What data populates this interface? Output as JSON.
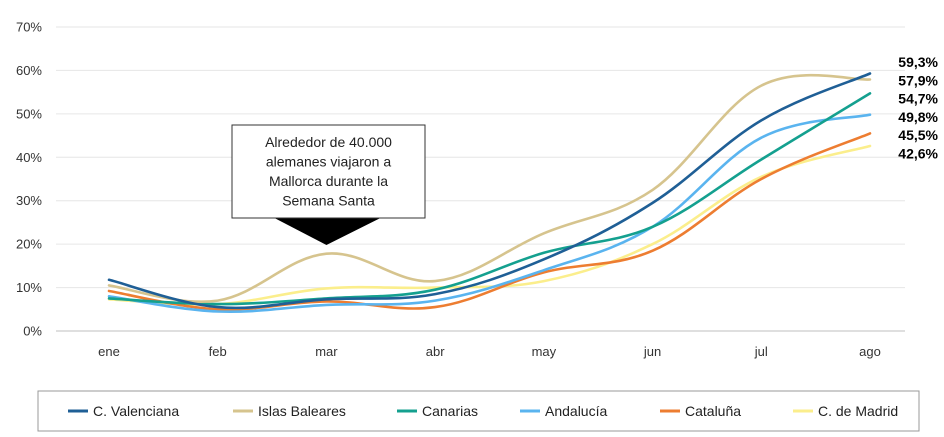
{
  "chart_data": {
    "type": "line",
    "categories": [
      "ene",
      "feb",
      "mar",
      "abr",
      "may",
      "jun",
      "jul",
      "ago"
    ],
    "y_ticks": [
      "0%",
      "10%",
      "20%",
      "30%",
      "40%",
      "50%",
      "60%",
      "70%"
    ],
    "ylim": [
      0,
      70
    ],
    "grid": true,
    "legend_position": "bottom",
    "series": [
      {
        "name": "C. Valenciana",
        "color": "#1f5f96",
        "values": [
          11.8,
          5.5,
          7.3,
          8.5,
          16.5,
          29.5,
          48.5,
          59.3
        ],
        "end_label": "59,3%"
      },
      {
        "name": "Islas Baleares",
        "color": "#d6c48e",
        "values": [
          10.5,
          7.0,
          17.8,
          11.5,
          22.5,
          32.5,
          56.5,
          57.9
        ],
        "end_label": "57,9%"
      },
      {
        "name": "Canarias",
        "color": "#14a08f",
        "values": [
          7.5,
          6.2,
          7.5,
          9.5,
          18.0,
          24.0,
          39.5,
          54.7
        ],
        "end_label": "54,7%"
      },
      {
        "name": "Andalucía",
        "color": "#5ab4ef",
        "values": [
          8.0,
          4.5,
          6.0,
          7.0,
          14.0,
          24.0,
          44.5,
          49.8
        ],
        "end_label": "49,8%"
      },
      {
        "name": "Cataluña",
        "color": "#ed7d31",
        "values": [
          9.2,
          5.0,
          6.8,
          5.5,
          13.5,
          18.5,
          35.0,
          45.5
        ],
        "end_label": "45,5%"
      },
      {
        "name": "C. de Madrid",
        "color": "#fbee8c",
        "values": [
          7.3,
          6.2,
          9.8,
          10.0,
          11.5,
          20.0,
          35.5,
          42.6
        ],
        "end_label": "42,6%"
      }
    ],
    "annotation": {
      "lines": [
        "Alrededor de 40.000",
        "alemanes viajaron a",
        "Mallorca durante la",
        "Semana Santa"
      ],
      "points_to": "mar"
    }
  }
}
